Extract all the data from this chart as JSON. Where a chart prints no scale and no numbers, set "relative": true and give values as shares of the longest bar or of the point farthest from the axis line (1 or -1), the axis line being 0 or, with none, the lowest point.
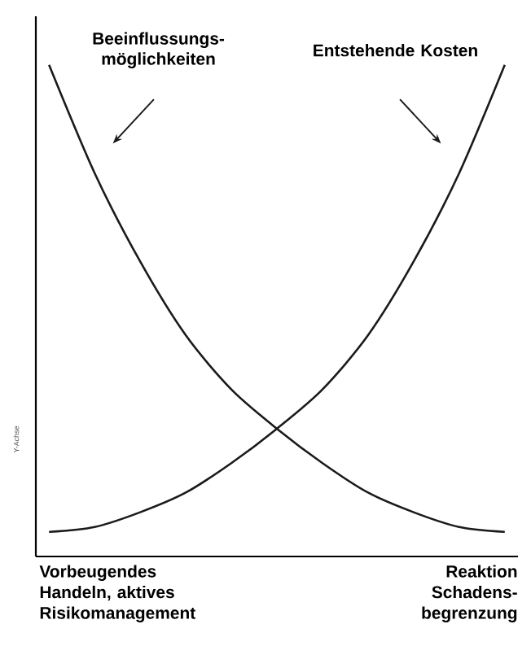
{
  "chart_data": {
    "type": "line",
    "relative": true,
    "ylabel": "Y-Achse",
    "categories": [
      null,
      null,
      null,
      null,
      null,
      null,
      null,
      null,
      null,
      null,
      null
    ],
    "series": [
      {
        "name": "Beeinflussungs-möglichkeiten",
        "color": "#1a1a1a",
        "values": [
          1.0,
          0.78,
          0.6,
          0.45,
          0.34,
          0.26,
          0.19,
          0.13,
          0.09,
          0.06,
          0.05
        ]
      },
      {
        "name": "Entstehende Kosten",
        "color": "#1a1a1a",
        "values": [
          0.05,
          0.06,
          0.09,
          0.13,
          0.19,
          0.26,
          0.34,
          0.45,
          0.6,
          0.78,
          1.0
        ]
      }
    ],
    "annotations": [
      "Vorbeugendes Handeln, aktives Risikomanagement",
      "Reaktion Schadens-begrenzung"
    ],
    "marker": "none",
    "line_style": "solid"
  }
}
